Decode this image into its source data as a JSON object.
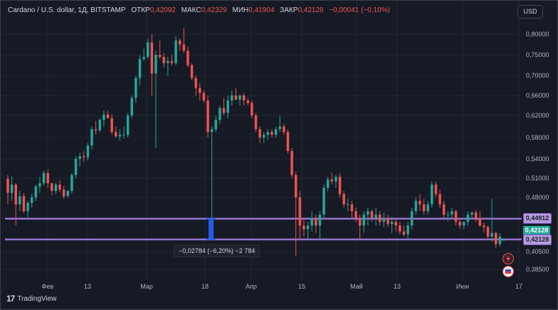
{
  "legend": {
    "symbol": "Cardano / U.S. dollar, 1Д, BITSTAMP",
    "open_label": "ОТКР",
    "open_value": "0,42092",
    "high_label": "МАКС",
    "high_value": "0,42329",
    "low_label": "МИН",
    "low_value": "0,41904",
    "close_label": "ЗАКР",
    "close_value": "0,42128",
    "change_value": "−0,00041 (−0,10%)"
  },
  "currency_button": "USD",
  "brand": "TradingView",
  "measure_label": "−0,02784 (−6,20%) −2 784",
  "price_tags": {
    "upper_line": "0,44912",
    "last_price": "0,42128",
    "lower_line": "0,42128"
  },
  "colors": {
    "up": "#26a69a",
    "down": "#ef5350",
    "background": "#161a25",
    "grid": "#232733",
    "rectangle": "#9575cd",
    "measure": "#2962ff"
  },
  "chart_data": {
    "type": "candlestick",
    "y_ticks": [
      "0,80000",
      "0,75000",
      "0,70000",
      "0,66000",
      "0,62000",
      "0,58000",
      "0,54000",
      "0,51000",
      "0,48000",
      "0,45000",
      "0,40500",
      "0,38500"
    ],
    "x_ticks": [
      "Фев",
      "13",
      "Мар",
      "18",
      "Апр",
      "15",
      "Май",
      "13",
      "Июн",
      "17"
    ],
    "ohlc": [
      [
        0.509,
        0.515,
        0.47,
        0.487
      ],
      [
        0.487,
        0.513,
        0.475,
        0.5
      ],
      [
        0.5,
        0.502,
        0.44,
        0.47
      ],
      [
        0.47,
        0.49,
        0.46,
        0.482
      ],
      [
        0.482,
        0.487,
        0.457,
        0.46
      ],
      [
        0.46,
        0.475,
        0.451,
        0.472
      ],
      [
        0.472,
        0.486,
        0.465,
        0.48
      ],
      [
        0.48,
        0.5,
        0.475,
        0.497
      ],
      [
        0.497,
        0.512,
        0.487,
        0.502
      ],
      [
        0.502,
        0.522,
        0.498,
        0.518
      ],
      [
        0.518,
        0.523,
        0.495,
        0.502
      ],
      [
        0.502,
        0.503,
        0.483,
        0.49
      ],
      [
        0.49,
        0.503,
        0.485,
        0.5
      ],
      [
        0.5,
        0.507,
        0.488,
        0.492
      ],
      [
        0.492,
        0.498,
        0.478,
        0.482
      ],
      [
        0.482,
        0.492,
        0.48,
        0.49
      ],
      [
        0.49,
        0.518,
        0.486,
        0.515
      ],
      [
        0.515,
        0.545,
        0.51,
        0.54
      ],
      [
        0.54,
        0.552,
        0.528,
        0.545
      ],
      [
        0.545,
        0.555,
        0.535,
        0.543
      ],
      [
        0.543,
        0.57,
        0.538,
        0.565
      ],
      [
        0.565,
        0.6,
        0.558,
        0.595
      ],
      [
        0.595,
        0.61,
        0.585,
        0.593
      ],
      [
        0.593,
        0.615,
        0.59,
        0.612
      ],
      [
        0.612,
        0.63,
        0.6,
        0.622
      ],
      [
        0.622,
        0.63,
        0.615,
        0.615
      ],
      [
        0.615,
        0.622,
        0.585,
        0.59
      ],
      [
        0.59,
        0.6,
        0.58,
        0.582
      ],
      [
        0.582,
        0.595,
        0.575,
        0.585
      ],
      [
        0.585,
        0.6,
        0.578,
        0.585
      ],
      [
        0.585,
        0.625,
        0.58,
        0.62
      ],
      [
        0.62,
        0.66,
        0.615,
        0.655
      ],
      [
        0.655,
        0.7,
        0.645,
        0.695
      ],
      [
        0.695,
        0.75,
        0.68,
        0.74
      ],
      [
        0.74,
        0.765,
        0.735,
        0.745
      ],
      [
        0.745,
        0.79,
        0.74,
        0.78
      ],
      [
        0.78,
        0.8,
        0.66,
        0.705
      ],
      [
        0.705,
        0.76,
        0.56,
        0.75
      ],
      [
        0.75,
        0.785,
        0.74,
        0.745
      ],
      [
        0.745,
        0.755,
        0.72,
        0.73
      ],
      [
        0.73,
        0.745,
        0.7,
        0.735
      ],
      [
        0.735,
        0.75,
        0.725,
        0.73
      ],
      [
        0.73,
        0.795,
        0.725,
        0.785
      ],
      [
        0.785,
        0.79,
        0.76,
        0.775
      ],
      [
        0.775,
        0.815,
        0.755,
        0.76
      ],
      [
        0.76,
        0.77,
        0.72,
        0.725
      ],
      [
        0.725,
        0.73,
        0.69,
        0.695
      ],
      [
        0.695,
        0.7,
        0.66,
        0.675
      ],
      [
        0.675,
        0.685,
        0.65,
        0.665
      ],
      [
        0.665,
        0.67,
        0.645,
        0.65
      ],
      [
        0.65,
        0.66,
        0.58,
        0.59
      ],
      [
        0.59,
        0.6,
        0.45,
        0.595
      ],
      [
        0.595,
        0.62,
        0.59,
        0.612
      ],
      [
        0.612,
        0.64,
        0.605,
        0.635
      ],
      [
        0.635,
        0.655,
        0.62,
        0.625
      ],
      [
        0.625,
        0.66,
        0.615,
        0.65
      ],
      [
        0.65,
        0.67,
        0.64,
        0.66
      ],
      [
        0.66,
        0.675,
        0.65,
        0.652
      ],
      [
        0.652,
        0.662,
        0.64,
        0.66
      ],
      [
        0.66,
        0.665,
        0.64,
        0.65
      ],
      [
        0.65,
        0.655,
        0.64,
        0.645
      ],
      [
        0.645,
        0.65,
        0.615,
        0.62
      ],
      [
        0.62,
        0.625,
        0.59,
        0.595
      ],
      [
        0.595,
        0.6,
        0.57,
        0.58
      ],
      [
        0.58,
        0.59,
        0.57,
        0.585
      ],
      [
        0.585,
        0.595,
        0.575,
        0.59
      ],
      [
        0.59,
        0.595,
        0.58,
        0.585
      ],
      [
        0.585,
        0.6,
        0.58,
        0.595
      ],
      [
        0.595,
        0.62,
        0.59,
        0.6
      ],
      [
        0.6,
        0.605,
        0.585,
        0.59
      ],
      [
        0.59,
        0.595,
        0.55,
        0.555
      ],
      [
        0.555,
        0.56,
        0.51,
        0.515
      ],
      [
        0.515,
        0.52,
        0.4,
        0.48
      ],
      [
        0.48,
        0.49,
        0.42,
        0.44
      ],
      [
        0.44,
        0.45,
        0.425,
        0.435
      ],
      [
        0.435,
        0.445,
        0.42,
        0.44
      ],
      [
        0.44,
        0.46,
        0.432,
        0.45
      ],
      [
        0.45,
        0.455,
        0.43,
        0.44
      ],
      [
        0.44,
        0.46,
        0.42,
        0.455
      ],
      [
        0.455,
        0.5,
        0.45,
        0.495
      ],
      [
        0.495,
        0.512,
        0.49,
        0.508
      ],
      [
        0.508,
        0.518,
        0.5,
        0.505
      ],
      [
        0.505,
        0.515,
        0.495,
        0.512
      ],
      [
        0.512,
        0.518,
        0.48,
        0.485
      ],
      [
        0.485,
        0.49,
        0.465,
        0.47
      ],
      [
        0.47,
        0.478,
        0.46,
        0.47
      ],
      [
        0.47,
        0.475,
        0.45,
        0.46
      ],
      [
        0.46,
        0.465,
        0.445,
        0.45
      ],
      [
        0.45,
        0.455,
        0.42,
        0.44
      ],
      [
        0.44,
        0.46,
        0.43,
        0.455
      ],
      [
        0.455,
        0.465,
        0.44,
        0.46
      ],
      [
        0.46,
        0.462,
        0.445,
        0.45
      ],
      [
        0.45,
        0.465,
        0.44,
        0.455
      ],
      [
        0.455,
        0.46,
        0.44,
        0.445
      ],
      [
        0.445,
        0.458,
        0.438,
        0.45
      ],
      [
        0.45,
        0.455,
        0.438,
        0.442
      ],
      [
        0.442,
        0.452,
        0.43,
        0.445
      ],
      [
        0.445,
        0.45,
        0.432,
        0.44
      ],
      [
        0.44,
        0.445,
        0.428,
        0.432
      ],
      [
        0.432,
        0.44,
        0.425,
        0.428
      ],
      [
        0.428,
        0.445,
        0.422,
        0.44
      ],
      [
        0.44,
        0.465,
        0.435,
        0.46
      ],
      [
        0.46,
        0.48,
        0.455,
        0.475
      ],
      [
        0.475,
        0.485,
        0.46,
        0.47
      ],
      [
        0.47,
        0.478,
        0.455,
        0.46
      ],
      [
        0.46,
        0.475,
        0.455,
        0.47
      ],
      [
        0.47,
        0.505,
        0.465,
        0.5
      ],
      [
        0.5,
        0.505,
        0.48,
        0.485
      ],
      [
        0.485,
        0.492,
        0.465,
        0.47
      ],
      [
        0.47,
        0.475,
        0.45,
        0.455
      ],
      [
        0.455,
        0.46,
        0.445,
        0.455
      ],
      [
        0.455,
        0.465,
        0.45,
        0.46
      ],
      [
        0.46,
        0.462,
        0.44,
        0.445
      ],
      [
        0.445,
        0.45,
        0.435,
        0.44
      ],
      [
        0.44,
        0.445,
        0.435,
        0.445
      ],
      [
        0.445,
        0.46,
        0.44,
        0.455
      ],
      [
        0.455,
        0.46,
        0.448,
        0.458
      ],
      [
        0.458,
        0.462,
        0.445,
        0.45
      ],
      [
        0.45,
        0.46,
        0.438,
        0.44
      ],
      [
        0.44,
        0.444,
        0.43,
        0.438
      ],
      [
        0.438,
        0.44,
        0.42,
        0.425
      ],
      [
        0.425,
        0.478,
        0.418,
        0.43
      ],
      [
        0.43,
        0.432,
        0.41,
        0.415
      ],
      [
        0.415,
        0.43,
        0.412,
        0.425
      ],
      [
        0.421,
        0.423,
        0.419,
        0.421
      ]
    ],
    "horizontal_lines": [
      0.44912,
      0.42128
    ],
    "measure": {
      "from": 0.44912,
      "to": 0.42128,
      "change": "−0,02784 (−6,20%) −2 784"
    }
  }
}
